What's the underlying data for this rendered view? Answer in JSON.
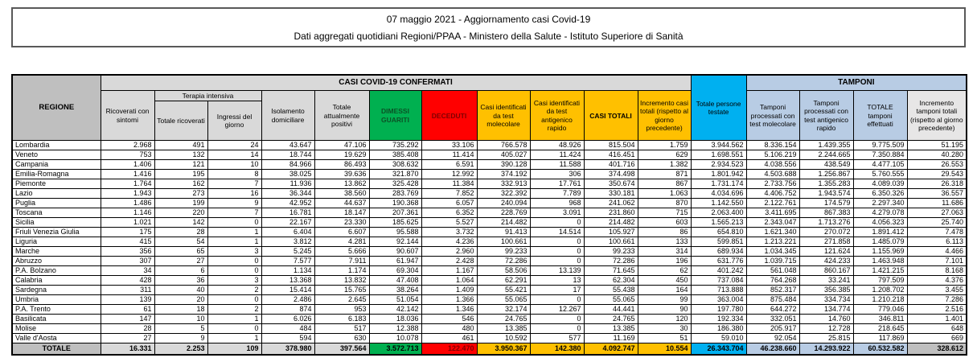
{
  "title": {
    "line1": "07 maggio 2021 - Aggiornamento casi Covid-19",
    "line2": "Dati aggregati quotidiani Regioni/PPAA - Ministero della Salute - Istituto Superiore di Sanità"
  },
  "colors": {
    "header_gray": "#BFBFBF",
    "band_gray": "#D9D9D9",
    "green": "#00B050",
    "red": "#FF0000",
    "yellow": "#FFC000",
    "cyan": "#00B0F0",
    "light_blue": "#B8CCE4"
  },
  "table": {
    "headers": {
      "region": "REGIONE",
      "confirmed_band": "CASI COVID-19 CONFERMATI",
      "tamponi_band": "TAMPONI",
      "ricoverati": "Ricoverati con sintomi",
      "terapia_intensiva": "Terapia intensiva",
      "totale_ricoverati": "Totale ricoverati",
      "ingressi": "Ingressi del giorno",
      "isolamento": "Isolamento domiciliare",
      "attualmente_positivi": "Totale attualmente positivi",
      "dimessi": "DIMESSI GUARITI",
      "deceduti": "DECEDUTI",
      "casi_molecolare": "Casi identificati da test molecolare",
      "casi_antigenico": "Casi identificati da test antigenico rapido",
      "casi_totali": "CASI TOTALI",
      "incremento_casi": "Incremento casi totali (rispetto al giorno precedente)",
      "persone_testate": "Totale persone testate",
      "tamponi_molecolare": "Tamponi processati con test molecolare",
      "tamponi_antigenico": "Tamponi processati con test antigenico rapido",
      "totale_tamponi": "TOTALE tamponi effettuati",
      "incremento_tamponi": "Incremento tamponi totali (rispetto al giorno precedente)"
    },
    "column_keys": [
      "ricoverati-con-sintomi",
      "totale-ricoverati",
      "ingressi-del-giorno",
      "isolamento-domiciliare",
      "totale-attualmente-positivi",
      "dimessi-guariti",
      "deceduti",
      "casi-test-molecolare",
      "casi-test-antigenico",
      "casi-totali",
      "incremento-casi",
      "persone-testate",
      "tamponi-molecolare",
      "tamponi-antigenico",
      "totale-tamponi",
      "incremento-tamponi"
    ],
    "rows": [
      {
        "region": "Lombardia",
        "values": [
          "2.968",
          "491",
          "24",
          "43.647",
          "47.106",
          "735.292",
          "33.106",
          "766.578",
          "48.926",
          "815.504",
          "1.759",
          "3.944.562",
          "8.336.154",
          "1.439.355",
          "9.775.509",
          "51.195"
        ]
      },
      {
        "region": "Veneto",
        "values": [
          "753",
          "132",
          "14",
          "18.744",
          "19.629",
          "385.408",
          "11.414",
          "405.027",
          "11.424",
          "416.451",
          "629",
          "1.698.551",
          "5.106.219",
          "2.244.665",
          "7.350.884",
          "40.280"
        ]
      },
      {
        "region": "Campania",
        "values": [
          "1.406",
          "121",
          "10",
          "84.966",
          "86.493",
          "308.632",
          "6.591",
          "390.128",
          "11.588",
          "401.716",
          "1.382",
          "2.934.523",
          "4.038.556",
          "438.549",
          "4.477.105",
          "26.553"
        ]
      },
      {
        "region": "Emilia-Romagna",
        "values": [
          "1.416",
          "195",
          "8",
          "38.025",
          "39.636",
          "321.870",
          "12.992",
          "374.192",
          "306",
          "374.498",
          "871",
          "1.801.942",
          "4.503.688",
          "1.256.867",
          "5.760.555",
          "29.543"
        ]
      },
      {
        "region": "Piemonte",
        "values": [
          "1.764",
          "162",
          "7",
          "11.936",
          "13.862",
          "325.428",
          "11.384",
          "332.913",
          "17.761",
          "350.674",
          "867",
          "1.731.174",
          "2.733.756",
          "1.355.283",
          "4.089.039",
          "26.318"
        ]
      },
      {
        "region": "Lazio",
        "values": [
          "1.943",
          "273",
          "16",
          "36.344",
          "38.560",
          "283.769",
          "7.852",
          "322.392",
          "7.789",
          "330.181",
          "1.063",
          "4.034.696",
          "4.406.752",
          "1.943.574",
          "6.350.326",
          "36.557"
        ]
      },
      {
        "region": "Puglia",
        "values": [
          "1.486",
          "199",
          "9",
          "42.952",
          "44.637",
          "190.368",
          "6.057",
          "240.094",
          "968",
          "241.062",
          "870",
          "1.142.550",
          "2.122.761",
          "174.579",
          "2.297.340",
          "11.686"
        ]
      },
      {
        "region": "Toscana",
        "values": [
          "1.146",
          "220",
          "7",
          "16.781",
          "18.147",
          "207.361",
          "6.352",
          "228.769",
          "3.091",
          "231.860",
          "715",
          "2.063.400",
          "3.411.695",
          "867.383",
          "4.279.078",
          "27.063"
        ]
      },
      {
        "region": "Sicilia",
        "values": [
          "1.021",
          "142",
          "0",
          "22.167",
          "23.330",
          "185.625",
          "5.527",
          "214.482",
          "0",
          "214.482",
          "603",
          "1.565.213",
          "2.343.047",
          "1.713.276",
          "4.056.323",
          "25.740"
        ]
      },
      {
        "region": "Friuli Venezia Giulia",
        "values": [
          "175",
          "28",
          "1",
          "6.404",
          "6.607",
          "95.588",
          "3.732",
          "91.413",
          "14.514",
          "105.927",
          "86",
          "654.810",
          "1.621.340",
          "270.072",
          "1.891.412",
          "7.478"
        ]
      },
      {
        "region": "Liguria",
        "values": [
          "415",
          "54",
          "1",
          "3.812",
          "4.281",
          "92.144",
          "4.236",
          "100.661",
          "0",
          "100.661",
          "133",
          "599.851",
          "1.213.221",
          "271.858",
          "1.485.079",
          "6.113"
        ]
      },
      {
        "region": "Marche",
        "values": [
          "356",
          "65",
          "3",
          "5.245",
          "5.666",
          "90.607",
          "2.960",
          "99.233",
          "0",
          "99.233",
          "314",
          "689.934",
          "1.034.345",
          "121.624",
          "1.155.969",
          "4.466"
        ]
      },
      {
        "region": "Abruzzo",
        "values": [
          "307",
          "27",
          "0",
          "7.577",
          "7.911",
          "61.947",
          "2.428",
          "72.286",
          "0",
          "72.286",
          "196",
          "631.776",
          "1.039.715",
          "424.233",
          "1.463.948",
          "7.101"
        ]
      },
      {
        "region": "P.A. Bolzano",
        "values": [
          "34",
          "6",
          "0",
          "1.134",
          "1.174",
          "69.304",
          "1.167",
          "58.506",
          "13.139",
          "71.645",
          "62",
          "401.242",
          "561.048",
          "860.167",
          "1.421.215",
          "8.168"
        ]
      },
      {
        "region": "Calabria",
        "values": [
          "428",
          "36",
          "3",
          "13.368",
          "13.832",
          "47.408",
          "1.064",
          "62.291",
          "13",
          "62.304",
          "450",
          "737.084",
          "764.268",
          "33.241",
          "797.509",
          "4.376"
        ]
      },
      {
        "region": "Sardegna",
        "values": [
          "311",
          "40",
          "2",
          "15.414",
          "15.765",
          "38.264",
          "1.409",
          "55.421",
          "17",
          "55.438",
          "164",
          "713.888",
          "852.317",
          "356.385",
          "1.208.702",
          "3.455"
        ]
      },
      {
        "region": "Umbria",
        "values": [
          "139",
          "20",
          "0",
          "2.486",
          "2.645",
          "51.054",
          "1.366",
          "55.065",
          "0",
          "55.065",
          "99",
          "363.004",
          "875.484",
          "334.734",
          "1.210.218",
          "7.286"
        ]
      },
      {
        "region": "P.A. Trento",
        "values": [
          "61",
          "18",
          "2",
          "874",
          "953",
          "42.142",
          "1.346",
          "32.174",
          "12.267",
          "44.441",
          "90",
          "197.780",
          "644.272",
          "134.774",
          "779.046",
          "2.516"
        ]
      },
      {
        "region": "Basilicata",
        "values": [
          "147",
          "10",
          "1",
          "6.026",
          "6.183",
          "18.036",
          "546",
          "24.765",
          "0",
          "24.765",
          "120",
          "192.334",
          "332.051",
          "14.760",
          "346.811",
          "1.401"
        ]
      },
      {
        "region": "Molise",
        "values": [
          "28",
          "5",
          "0",
          "484",
          "517",
          "12.388",
          "480",
          "13.385",
          "0",
          "13.385",
          "30",
          "186.380",
          "205.917",
          "12.728",
          "218.645",
          "648"
        ]
      },
      {
        "region": "Valle d'Aosta",
        "values": [
          "27",
          "9",
          "1",
          "594",
          "630",
          "10.078",
          "461",
          "10.592",
          "577",
          "11.169",
          "51",
          "59.010",
          "92.054",
          "25.815",
          "117.869",
          "669"
        ]
      },
      {
        "region": "TOTALE",
        "is_total": true,
        "values": [
          "16.331",
          "2.253",
          "109",
          "378.980",
          "397.564",
          "3.572.713",
          "122.470",
          "3.950.367",
          "142.380",
          "4.092.747",
          "10.554",
          "26.343.704",
          "46.238.660",
          "14.293.922",
          "60.532.582",
          "328.612"
        ]
      }
    ]
  }
}
